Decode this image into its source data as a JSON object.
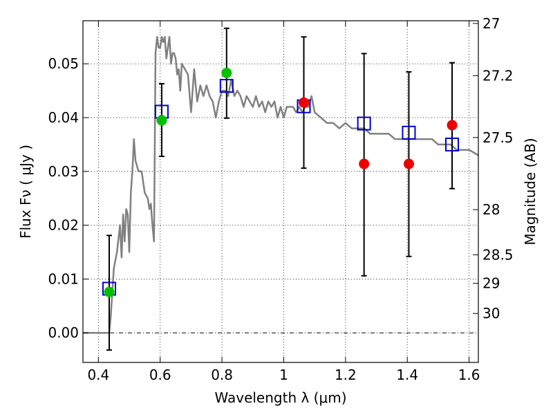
{
  "chart_data": {
    "type": "scatter",
    "xlabel": "Wavelength  λ (μm)",
    "ylabel": "Flux  Fν  ( μJy )",
    "y2label": "Magnitude (AB)",
    "xlim": [
      0.35,
      1.63
    ],
    "ylim": [
      -0.0055,
      0.058
    ],
    "x_ticks": [
      0.4,
      0.6,
      0.8,
      1.0,
      1.2,
      1.4,
      1.6
    ],
    "x_tick_labels": [
      "0.4",
      "0.6",
      "0.8",
      "1",
      "1.2",
      "1.4",
      "1.6"
    ],
    "y_ticks": [
      0.0,
      0.01,
      0.02,
      0.03,
      0.04,
      0.05
    ],
    "y_tick_labels": [
      "0.00",
      "0.01",
      "0.02",
      "0.03",
      "0.04",
      "0.05"
    ],
    "magnitude_ticks": [
      {
        "label": "27",
        "flux": 0.0575
      },
      {
        "label": "27.2",
        "flux": 0.0478
      },
      {
        "label": "27.5",
        "flux": 0.0363
      },
      {
        "label": "28",
        "flux": 0.0229
      },
      {
        "label": "28.5",
        "flux": 0.0145
      },
      {
        "label": "29",
        "flux": 0.0092
      },
      {
        "label": "30",
        "flux": 0.0036
      }
    ],
    "grid": true,
    "model_spectrum": {
      "color": "#808080",
      "x": [
        0.35,
        0.43,
        0.435,
        0.44,
        0.45,
        0.46,
        0.47,
        0.475,
        0.48,
        0.485,
        0.49,
        0.495,
        0.5,
        0.505,
        0.51,
        0.515,
        0.52,
        0.53,
        0.54,
        0.55,
        0.56,
        0.565,
        0.57,
        0.575,
        0.58,
        0.585,
        0.59,
        0.595,
        0.6,
        0.605,
        0.61,
        0.615,
        0.62,
        0.625,
        0.63,
        0.635,
        0.64,
        0.645,
        0.65,
        0.655,
        0.66,
        0.665,
        0.67,
        0.68,
        0.69,
        0.7,
        0.71,
        0.72,
        0.73,
        0.74,
        0.75,
        0.76,
        0.77,
        0.78,
        0.79,
        0.8,
        0.81,
        0.82,
        0.83,
        0.84,
        0.85,
        0.86,
        0.87,
        0.88,
        0.89,
        0.9,
        0.91,
        0.92,
        0.93,
        0.94,
        0.95,
        0.96,
        0.97,
        0.98,
        0.99,
        1.0,
        1.01,
        1.02,
        1.03,
        1.04,
        1.05,
        1.06,
        1.07,
        1.08,
        1.09,
        1.1,
        1.12,
        1.14,
        1.16,
        1.18,
        1.2,
        1.22,
        1.24,
        1.26,
        1.28,
        1.3,
        1.32,
        1.34,
        1.36,
        1.38,
        1.4,
        1.42,
        1.44,
        1.46,
        1.48,
        1.5,
        1.52,
        1.54,
        1.56,
        1.58,
        1.6,
        1.63
      ],
      "y": [
        0.0,
        0.0,
        0.0,
        0.003,
        0.012,
        0.015,
        0.02,
        0.014,
        0.022,
        0.017,
        0.023,
        0.022,
        0.015,
        0.026,
        0.03,
        0.036,
        0.032,
        0.03,
        0.03,
        0.026,
        0.025,
        0.023,
        0.024,
        0.02,
        0.017,
        0.052,
        0.055,
        0.053,
        0.053,
        0.055,
        0.054,
        0.055,
        0.051,
        0.053,
        0.055,
        0.05,
        0.052,
        0.052,
        0.051,
        0.048,
        0.049,
        0.045,
        0.05,
        0.049,
        0.048,
        0.041,
        0.049,
        0.043,
        0.046,
        0.044,
        0.046,
        0.044,
        0.043,
        0.04,
        0.043,
        0.045,
        0.045,
        0.044,
        0.047,
        0.044,
        0.045,
        0.044,
        0.042,
        0.044,
        0.043,
        0.042,
        0.044,
        0.042,
        0.043,
        0.041,
        0.043,
        0.042,
        0.043,
        0.04,
        0.042,
        0.04,
        0.042,
        0.042,
        0.042,
        0.041,
        0.042,
        0.041,
        0.042,
        0.042,
        0.044,
        0.041,
        0.04,
        0.039,
        0.039,
        0.038,
        0.039,
        0.038,
        0.038,
        0.038,
        0.037,
        0.037,
        0.037,
        0.037,
        0.036,
        0.036,
        0.036,
        0.036,
        0.036,
        0.036,
        0.036,
        0.035,
        0.035,
        0.035,
        0.034,
        0.034,
        0.034,
        0.033
      ]
    },
    "model_photometry": {
      "color": "#0000cc",
      "marker": "open-square",
      "x": [
        0.435,
        0.605,
        0.815,
        1.065,
        1.26,
        1.405,
        1.545
      ],
      "y": [
        0.0082,
        0.0411,
        0.0459,
        0.0421,
        0.0389,
        0.0372,
        0.035
      ]
    },
    "observed_detections": {
      "color": "#00c000",
      "marker": "circle",
      "x": [
        0.435,
        0.605,
        0.815
      ],
      "y": [
        0.0076,
        0.0395,
        0.0483
      ],
      "err_low": [
        -0.0032,
        0.0328,
        0.0399
      ],
      "err_high": [
        0.0181,
        0.0463,
        0.0566
      ]
    },
    "observed_other": {
      "color": "#ee0000",
      "marker": "circle",
      "x": [
        1.065,
        1.26,
        1.405,
        1.545
      ],
      "y": [
        0.0428,
        0.0314,
        0.0314,
        0.0386
      ],
      "err_low": [
        0.0306,
        0.0106,
        0.0142,
        0.0268
      ],
      "err_high": [
        0.055,
        0.0519,
        0.0485,
        0.0502
      ]
    }
  }
}
